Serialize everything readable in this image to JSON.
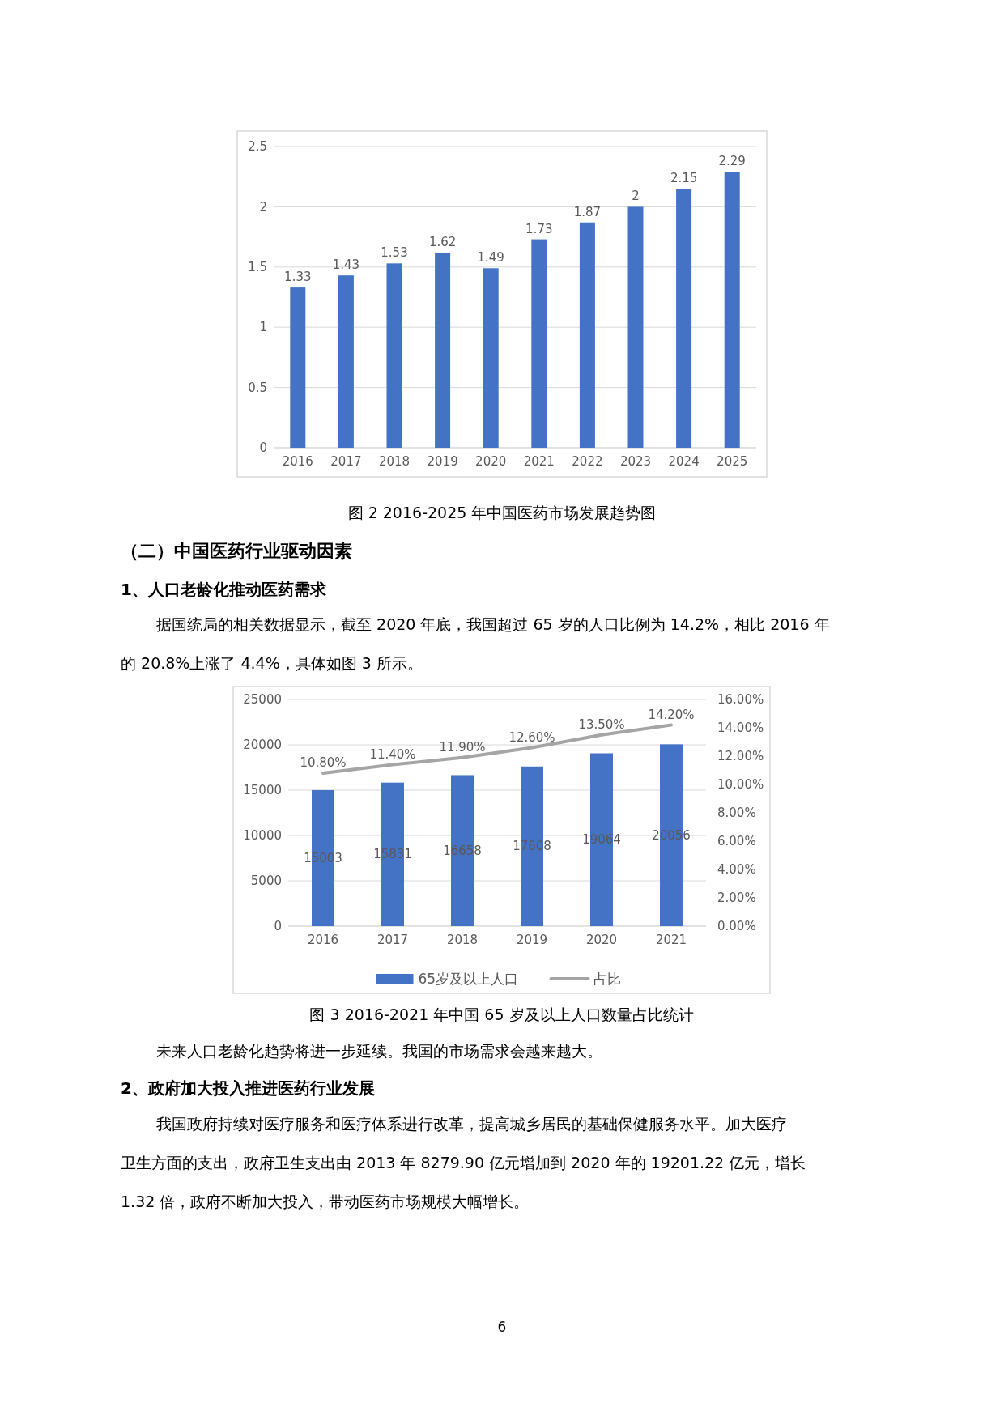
{
  "chart_data": [
    {
      "type": "bar",
      "title": "图 2 2016-2025 年中国医药市场发展趋势图",
      "categories": [
        "2016",
        "2017",
        "2018",
        "2019",
        "2020",
        "2021",
        "2022",
        "2023",
        "2024",
        "2025"
      ],
      "values": [
        1.33,
        1.43,
        1.53,
        1.62,
        1.49,
        1.73,
        1.87,
        2,
        2.15,
        2.29
      ],
      "color": "#4472c4",
      "ylim": [
        0,
        2.5
      ],
      "yticks": [
        0,
        0.5,
        1,
        1.5,
        2,
        2.5
      ],
      "grid": "y",
      "data_labels": true,
      "legend": false,
      "annotations": [
        "（二）中国医药行业驱动因素",
        "1、人口老龄化推动医药需求",
        "据国统局的相关数据显示，截至 2020 年底，我国超过 65 岁的人口比例为 14.2%，相比 2016 年",
        "的 20.8%上涨了 4.4%，具体如图 3 所示。"
      ]
    },
    {
      "type": "bar",
      "title": "图 3 2016-2021 年中国 65 岁及以上人口数量占比统计",
      "categories": [
        "2016",
        "2017",
        "2018",
        "2019",
        "2020",
        "2021"
      ],
      "series": [
        {
          "name": "65岁及以上人口",
          "type": "bar",
          "color": "#4472c4",
          "values": [
            15003,
            15831,
            16658,
            17608,
            19064,
            20056
          ]
        },
        {
          "name": "占比",
          "type": "line",
          "axis": "y2",
          "color": "#a5a5a5",
          "values": [
            10.8,
            11.4,
            11.9,
            12.6,
            13.5,
            14.2
          ],
          "value_labels": [
            "10.80%",
            "11.40%",
            "11.90%",
            "12.60%",
            "13.50%",
            "14.20%"
          ]
        }
      ],
      "ylim": [
        0,
        25000
      ],
      "yticks": [
        0,
        5000,
        10000,
        15000,
        20000,
        25000
      ],
      "y2lim": [
        0,
        16
      ],
      "y2ticks": [
        {
          "value": 0,
          "label": "0.00%"
        },
        {
          "value": 2,
          "label": "2.00%"
        },
        {
          "value": 4,
          "label": "4.00%"
        },
        {
          "value": 6,
          "label": "6.00%"
        },
        {
          "value": 8,
          "label": "8.00%"
        },
        {
          "value": 10,
          "label": "10.00%"
        },
        {
          "value": 12,
          "label": "12.00%"
        },
        {
          "value": 14,
          "label": "14.00%"
        },
        {
          "value": 16,
          "label": "16.00%"
        }
      ],
      "grid": "y",
      "data_labels": true,
      "legend": "bottom",
      "marker": "none",
      "line_style": "solid",
      "annotations": [
        "未来人口老龄化趋势将进一步延续。我国的市场需求会越来越大。",
        "2、政府加大投入推进医药行业发展",
        "我国政府持续对医疗服务和医疗体系进行改革，提高城乡居民的基础保健服务水平。加大医疗",
        "卫生方面的支出，政府卫生支出由 2013 年 8279.90 亿元增加到 2020 年的 19201.22 亿元，增长",
        "1.32 倍，政府不断加大投入，带动医药市场规模大幅增长。",
        "6"
      ]
    }
  ]
}
